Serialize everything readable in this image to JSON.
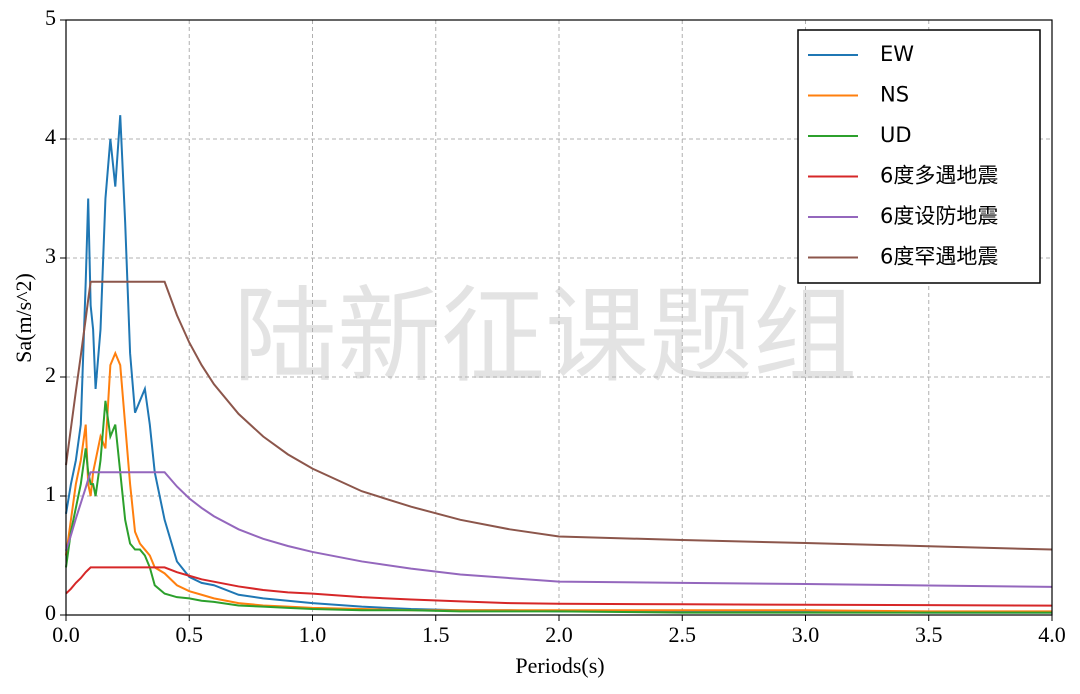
{
  "chart_data": {
    "type": "line",
    "xlabel": "Periods(s)",
    "ylabel": "Sa(m/s^2)",
    "watermark": "陆新征课题组",
    "x": [
      0,
      0.02,
      0.04,
      0.06,
      0.08,
      0.09,
      0.1,
      0.11,
      0.12,
      0.14,
      0.16,
      0.18,
      0.2,
      0.22,
      0.24,
      0.26,
      0.28,
      0.3,
      0.32,
      0.34,
      0.36,
      0.4,
      0.45,
      0.5,
      0.55,
      0.6,
      0.7,
      0.8,
      0.9,
      1.0,
      1.2,
      1.4,
      1.6,
      1.8,
      2.0,
      2.5,
      3.0,
      3.5,
      4.0
    ],
    "series": [
      {
        "name": "EW",
        "color": "#1f77b4",
        "values": [
          0.85,
          1.1,
          1.3,
          1.6,
          2.8,
          3.5,
          2.6,
          2.4,
          1.9,
          2.4,
          3.5,
          4.0,
          3.6,
          4.2,
          3.3,
          2.2,
          1.7,
          1.8,
          1.9,
          1.6,
          1.2,
          0.8,
          0.45,
          0.32,
          0.27,
          0.25,
          0.17,
          0.14,
          0.12,
          0.1,
          0.07,
          0.05,
          0.04,
          0.04,
          0.03,
          0.03,
          0.025,
          0.02,
          0.02
        ]
      },
      {
        "name": "NS",
        "color": "#ff7f0e",
        "values": [
          0.5,
          0.8,
          1.1,
          1.3,
          1.6,
          1.1,
          1.0,
          1.2,
          1.3,
          1.5,
          1.4,
          2.1,
          2.2,
          2.1,
          1.6,
          1.1,
          0.7,
          0.6,
          0.55,
          0.5,
          0.4,
          0.35,
          0.25,
          0.2,
          0.17,
          0.14,
          0.1,
          0.08,
          0.07,
          0.06,
          0.05,
          0.04,
          0.04,
          0.04,
          0.04,
          0.04,
          0.04,
          0.03,
          0.03
        ]
      },
      {
        "name": "UD",
        "color": "#2ca02c",
        "values": [
          0.4,
          0.7,
          0.9,
          1.1,
          1.4,
          1.2,
          1.1,
          1.1,
          1.0,
          1.3,
          1.8,
          1.5,
          1.6,
          1.2,
          0.8,
          0.6,
          0.55,
          0.55,
          0.5,
          0.4,
          0.25,
          0.18,
          0.15,
          0.14,
          0.12,
          0.11,
          0.08,
          0.07,
          0.06,
          0.05,
          0.04,
          0.04,
          0.03,
          0.03,
          0.03,
          0.02,
          0.02,
          0.02,
          0.02
        ]
      },
      {
        "name": "6度多遇地震",
        "color": "#d62728",
        "values": [
          0.18,
          0.22,
          0.27,
          0.31,
          0.36,
          0.38,
          0.4,
          0.4,
          0.4,
          0.4,
          0.4,
          0.4,
          0.4,
          0.4,
          0.4,
          0.4,
          0.4,
          0.4,
          0.4,
          0.4,
          0.4,
          0.4,
          0.36,
          0.33,
          0.3,
          0.28,
          0.24,
          0.21,
          0.19,
          0.18,
          0.15,
          0.13,
          0.115,
          0.1,
          0.094,
          0.09,
          0.086,
          0.083,
          0.079
        ]
      },
      {
        "name": "6度设防地震",
        "color": "#9467bd",
        "values": [
          0.54,
          0.67,
          0.81,
          0.94,
          1.07,
          1.14,
          1.2,
          1.2,
          1.2,
          1.2,
          1.2,
          1.2,
          1.2,
          1.2,
          1.2,
          1.2,
          1.2,
          1.2,
          1.2,
          1.2,
          1.2,
          1.2,
          1.08,
          0.98,
          0.9,
          0.83,
          0.72,
          0.64,
          0.58,
          0.53,
          0.45,
          0.39,
          0.34,
          0.31,
          0.28,
          0.27,
          0.26,
          0.248,
          0.236
        ]
      },
      {
        "name": "6度罕遇地震",
        "color": "#8c564b",
        "values": [
          1.26,
          1.57,
          1.88,
          2.18,
          2.49,
          2.65,
          2.8,
          2.8,
          2.8,
          2.8,
          2.8,
          2.8,
          2.8,
          2.8,
          2.8,
          2.8,
          2.8,
          2.8,
          2.8,
          2.8,
          2.8,
          2.8,
          2.52,
          2.29,
          2.1,
          1.94,
          1.69,
          1.5,
          1.35,
          1.23,
          1.04,
          0.91,
          0.8,
          0.72,
          0.66,
          0.63,
          0.605,
          0.578,
          0.55
        ]
      }
    ],
    "xlim": [
      0,
      4.0
    ],
    "ylim": [
      0,
      5
    ],
    "xticks": [
      {
        "value": 0,
        "label": "0.0"
      },
      {
        "value": 0.5,
        "label": "0.5"
      },
      {
        "value": 1,
        "label": "1.0"
      },
      {
        "value": 1.5,
        "label": "1.5"
      },
      {
        "value": 2,
        "label": "2.0"
      },
      {
        "value": 2.5,
        "label": "2.5"
      },
      {
        "value": 3,
        "label": "3.0"
      },
      {
        "value": 3.5,
        "label": "3.5"
      },
      {
        "value": 4,
        "label": "4.0"
      }
    ],
    "yticks": [
      0,
      1,
      2,
      3,
      4,
      5
    ],
    "grid": true,
    "legend": "upper right"
  }
}
